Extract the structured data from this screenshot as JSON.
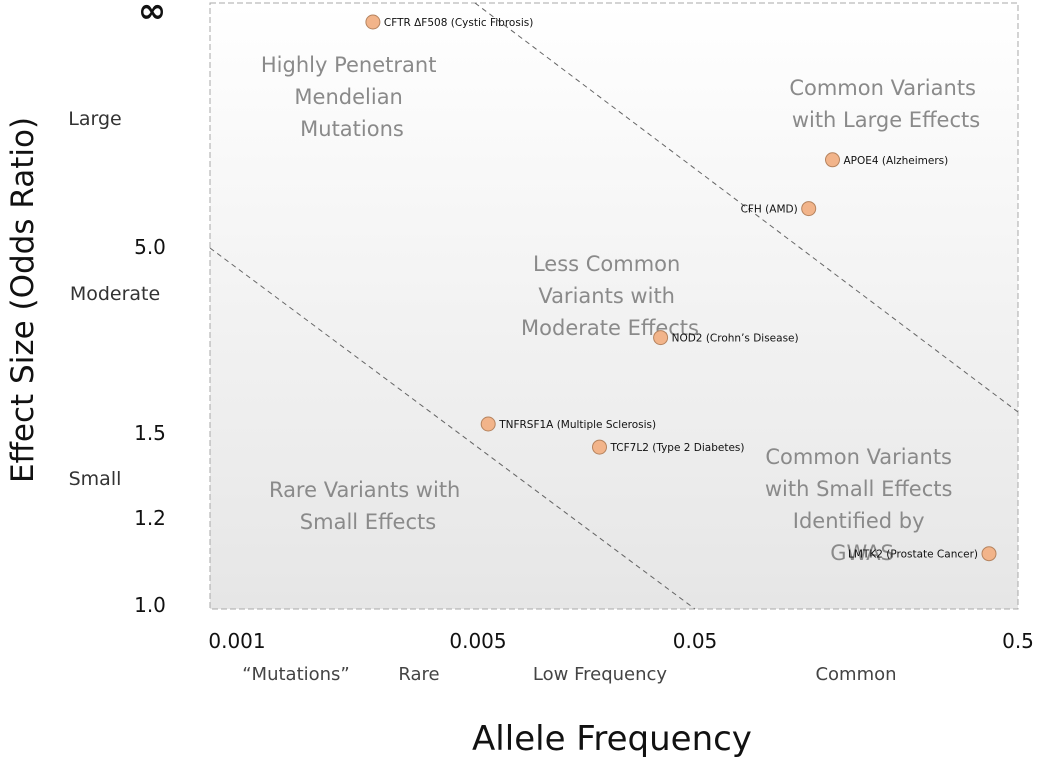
{
  "chart_data": {
    "type": "scatter",
    "xlabel": "Allele Frequency",
    "ylabel": "Effect Size (Odds Ratio)",
    "x_scale": "log",
    "xlim": [
      0.001,
      0.5
    ],
    "x_ticks": [
      "0.001",
      "0.005",
      "0.05",
      "0.5"
    ],
    "y_ticks": [
      "∞",
      "5.0",
      "1.5",
      "1.2",
      "1.0"
    ],
    "y_bands": [
      "Large",
      "Moderate",
      "Small"
    ],
    "x_categories": [
      "“Mutations”",
      "Rare",
      "Low Frequency",
      "Common"
    ],
    "regions": [
      {
        "lines": [
          "Highly Penetrant",
          "Mendelian",
          "Mutations"
        ]
      },
      {
        "lines": [
          "Common Variants",
          "with Large Effects"
        ]
      },
      {
        "lines": [
          "Less Common",
          "Variants with",
          "Moderate Effects"
        ]
      },
      {
        "lines": [
          "Rare Variants with",
          "Small Effects"
        ]
      },
      {
        "lines": [
          "Common Variants",
          "with Small Effects",
          "Identified by",
          "GWAS"
        ]
      }
    ],
    "points": [
      {
        "label": "CFTR ΔF508 (Cystic Fibrosis)",
        "x": 0.0035,
        "y": "∞"
      },
      {
        "label": "APOE4 (Alzheimers)",
        "x": 0.12,
        "y": 9.0
      },
      {
        "label": "CFH (AMD)",
        "x": 0.1,
        "y": 6.5
      },
      {
        "label": "NOD2 (Crohn’s Disease)",
        "x": 0.032,
        "y": 2.8
      },
      {
        "label": "TNFRSF1A (Multiple Sclerosis)",
        "x": 0.0085,
        "y": 1.6
      },
      {
        "label": "TCF7L2 (Type 2 Diabetes)",
        "x": 0.02,
        "y": 1.45
      },
      {
        "label": "LMTK2 (Prostate Cancer)",
        "x": 0.4,
        "y": 1.12
      }
    ],
    "colors": {
      "point_fill": "#f2b48a",
      "point_stroke": "#b5835e",
      "region_text": "#8a8a8a"
    }
  }
}
